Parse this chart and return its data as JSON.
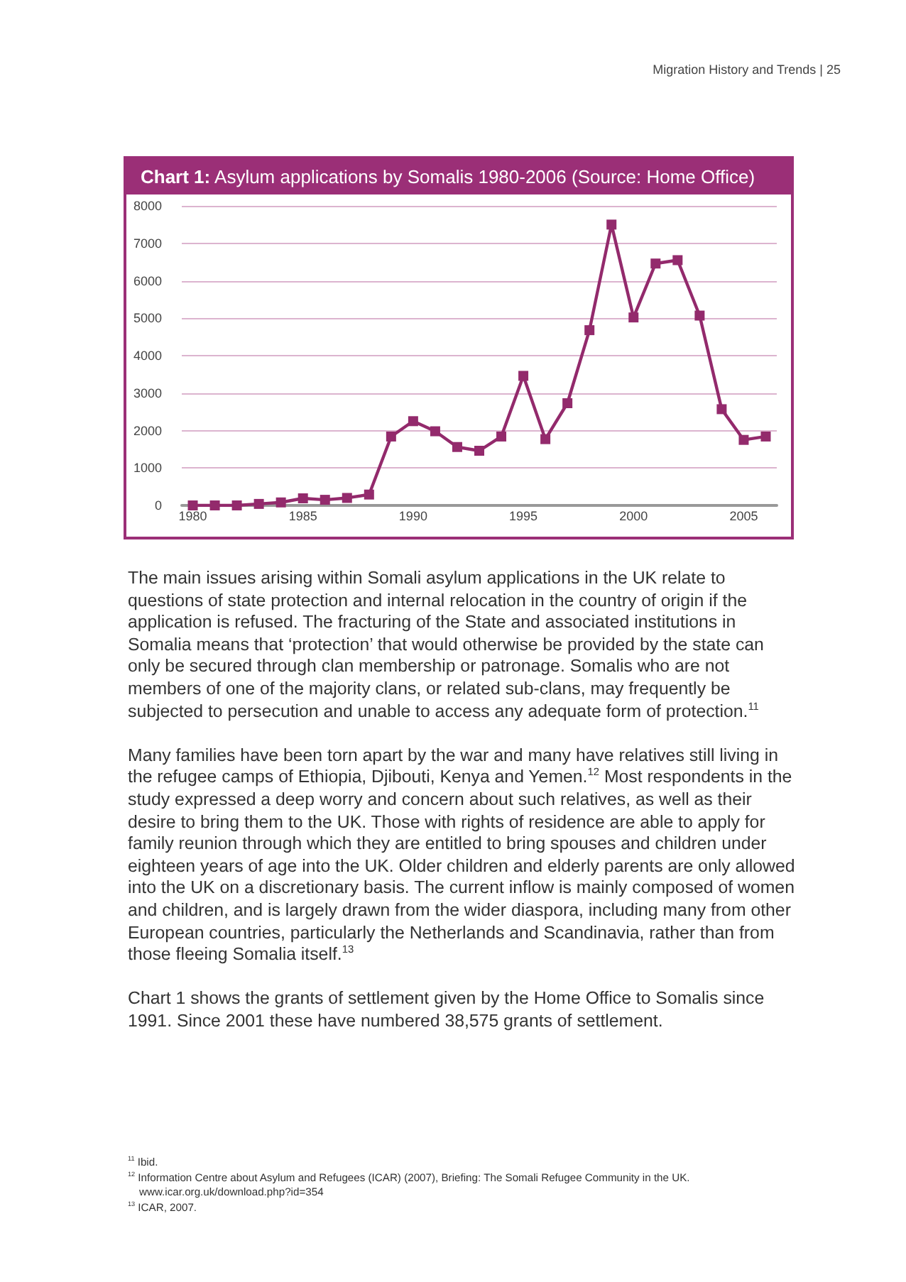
{
  "chart_data": {
    "type": "line",
    "title": "Chart 1: Asylum applications by Somalis 1980-2006 (Source: Home Office)",
    "x": [
      1980,
      1981,
      1982,
      1983,
      1984,
      1985,
      1986,
      1987,
      1988,
      1989,
      1990,
      1991,
      1992,
      1993,
      1994,
      1995,
      1996,
      1997,
      1998,
      1999,
      2000,
      2001,
      2002,
      2003,
      2004,
      2005,
      2006
    ],
    "series": [
      {
        "color": "#932a6c",
        "values": [
          0,
          0,
          0,
          40,
          80,
          190,
          150,
          200,
          290,
          1840,
          2250,
          1980,
          1560,
          1460,
          1840,
          3460,
          1770,
          2730,
          4680,
          7500,
          5020,
          6460,
          6550,
          5070,
          2570,
          1750,
          1840
        ]
      }
    ],
    "xlim": [
      1979.5,
      2006.5
    ],
    "xticks": [
      1980,
      1985,
      1990,
      1995,
      2000,
      2005
    ],
    "ylim": [
      0,
      8000
    ],
    "yticks": [
      0,
      1000,
      2000,
      3000,
      4000,
      5000,
      6000,
      7000,
      8000
    ],
    "grid": "y",
    "marker": "square",
    "line_style": "solid",
    "annotations": [
      "Migration History and Trends  |  25",
      "The main issues arising within Somali asylum applications in the UK relate to questions of state protection and internal relocation in the country of origin if the application is refused. The fracturing of the State and associated institutions in Somalia means that ‘protection’ that would otherwise be provided by the state can only be secured through clan membership or patronage. Somalis who are not members of one of the majority clans, or related sub-clans, may frequently be subjected to persecution and unable to access any adequate form of protection.$^{11}$",
      "Many families have been torn apart by the war and many have relatives still living in the refugee camps of Ethiopia, Djibouti, Kenya and Yemen.$^{12}$ Most respondents in the study expressed a deep worry and concern about such relatives, as well as their desire to bring them to the UK. Those with rights of residence are able to apply for family reunion through which they are entitled to bring spouses and children under eighteen years of age into the UK. Older children and elderly parents are only allowed into the UK on a discretionary basis. The current inflow is mainly composed of women and children, and is largely drawn from the wider diaspora, including many from other European countries, particularly the Netherlands and Scandinavia, rather than from those fleeing Somalia itself.$^{13}$",
      "Chart 1 shows the grants of settlement given by the Home Office to Somalis since 1991. Since 2001 these have numbered 38,575 grants of settlement.",
      "$^{11}$ Ibid.",
      "$^{12}$ Information Centre about Asylum and Refugees (ICAR) (2007), Briefing: The Somali Refugee Community in the UK. www.icar.org.uk/download.php?id=354",
      "$^{13}$ ICAR, 2007."
    ]
  }
}
